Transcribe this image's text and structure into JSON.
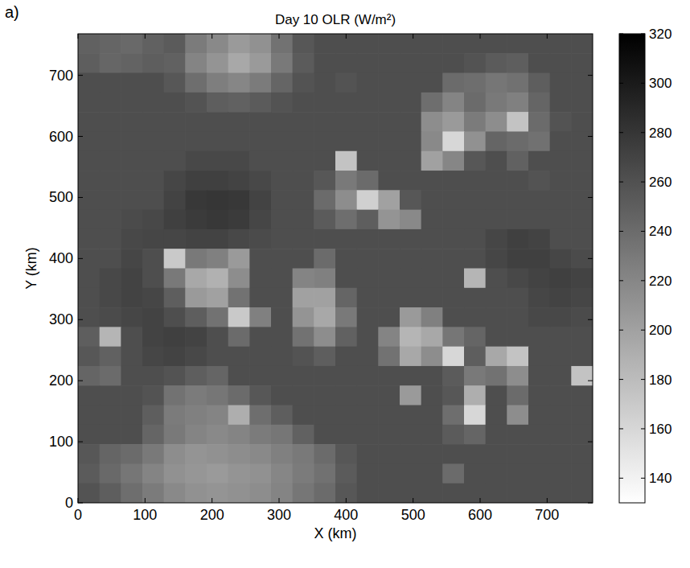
{
  "chart_data": {
    "type": "heatmap",
    "title": "Day 10 OLR (W/m²)",
    "panel_label": "a)",
    "x_label": "X (km)",
    "y_label": "Y (km)",
    "x": [
      16,
      48,
      80,
      112,
      144,
      176,
      208,
      240,
      272,
      304,
      336,
      368,
      400,
      432,
      464,
      496,
      528,
      560,
      592,
      624,
      656,
      688,
      720,
      752
    ],
    "y": [
      752,
      720,
      688,
      656,
      624,
      592,
      560,
      528,
      496,
      464,
      432,
      400,
      368,
      336,
      304,
      272,
      240,
      208,
      176,
      144,
      112,
      80,
      48,
      16
    ],
    "cells": [
      [
        248,
        245,
        242,
        248,
        252,
        228,
        218,
        205,
        212,
        235,
        255,
        262,
        262,
        262,
        262,
        262,
        262,
        262,
        262,
        262,
        262,
        262,
        262,
        262
      ],
      [
        250,
        244,
        246,
        250,
        248,
        222,
        210,
        195,
        205,
        230,
        252,
        262,
        262,
        262,
        262,
        262,
        262,
        262,
        258,
        252,
        250,
        262,
        262,
        262
      ],
      [
        262,
        262,
        262,
        262,
        255,
        238,
        226,
        220,
        228,
        245,
        258,
        262,
        258,
        262,
        262,
        262,
        262,
        240,
        238,
        232,
        236,
        250,
        262,
        262
      ],
      [
        262,
        262,
        262,
        262,
        262,
        258,
        250,
        248,
        252,
        258,
        262,
        262,
        262,
        262,
        262,
        262,
        238,
        222,
        240,
        230,
        225,
        245,
        262,
        262
      ],
      [
        262,
        262,
        262,
        262,
        262,
        262,
        262,
        262,
        262,
        262,
        262,
        262,
        262,
        262,
        262,
        262,
        215,
        205,
        228,
        215,
        175,
        240,
        258,
        262
      ],
      [
        262,
        262,
        262,
        262,
        262,
        262,
        262,
        262,
        262,
        262,
        262,
        262,
        262,
        262,
        262,
        262,
        218,
        160,
        212,
        245,
        240,
        236,
        262,
        262
      ],
      [
        262,
        262,
        262,
        262,
        262,
        266,
        266,
        266,
        262,
        262,
        262,
        262,
        175,
        262,
        262,
        262,
        200,
        220,
        255,
        262,
        248,
        262,
        262,
        262
      ],
      [
        262,
        262,
        262,
        262,
        268,
        272,
        272,
        270,
        266,
        262,
        262,
        255,
        230,
        240,
        262,
        262,
        262,
        262,
        262,
        262,
        262,
        258,
        262,
        262
      ],
      [
        262,
        262,
        262,
        262,
        270,
        278,
        280,
        278,
        270,
        262,
        262,
        240,
        215,
        165,
        200,
        255,
        262,
        262,
        262,
        262,
        262,
        262,
        262,
        262
      ],
      [
        262,
        262,
        264,
        266,
        272,
        276,
        278,
        276,
        268,
        262,
        262,
        252,
        238,
        250,
        210,
        218,
        262,
        262,
        262,
        262,
        262,
        262,
        262,
        262
      ],
      [
        262,
        262,
        266,
        268,
        268,
        270,
        270,
        266,
        264,
        262,
        262,
        262,
        262,
        262,
        262,
        262,
        262,
        262,
        262,
        268,
        272,
        270,
        262,
        262
      ],
      [
        262,
        262,
        268,
        262,
        170,
        230,
        225,
        205,
        262,
        262,
        262,
        240,
        262,
        262,
        262,
        262,
        262,
        262,
        262,
        268,
        272,
        272,
        268,
        264
      ],
      [
        262,
        266,
        270,
        262,
        230,
        195,
        188,
        215,
        262,
        262,
        222,
        225,
        262,
        262,
        262,
        262,
        262,
        262,
        185,
        262,
        266,
        270,
        272,
        270
      ],
      [
        262,
        266,
        270,
        268,
        250,
        205,
        200,
        235,
        262,
        262,
        200,
        200,
        245,
        262,
        262,
        262,
        262,
        262,
        262,
        262,
        262,
        268,
        270,
        268
      ],
      [
        262,
        264,
        268,
        270,
        262,
        250,
        235,
        170,
        225,
        262,
        210,
        195,
        230,
        262,
        262,
        205,
        225,
        262,
        262,
        262,
        262,
        266,
        266,
        264
      ],
      [
        250,
        185,
        262,
        270,
        272,
        270,
        262,
        240,
        262,
        262,
        235,
        215,
        248,
        262,
        222,
        185,
        195,
        232,
        245,
        262,
        262,
        262,
        262,
        262
      ],
      [
        255,
        248,
        262,
        268,
        270,
        266,
        262,
        262,
        262,
        262,
        258,
        250,
        262,
        262,
        235,
        195,
        215,
        160,
        250,
        195,
        175,
        262,
        262,
        262
      ],
      [
        245,
        240,
        262,
        262,
        258,
        250,
        245,
        262,
        262,
        262,
        262,
        262,
        262,
        262,
        262,
        262,
        262,
        252,
        230,
        235,
        215,
        262,
        262,
        175
      ],
      [
        262,
        262,
        262,
        258,
        235,
        228,
        232,
        240,
        255,
        262,
        262,
        262,
        262,
        262,
        262,
        205,
        262,
        255,
        190,
        262,
        240,
        262,
        262,
        262
      ],
      [
        262,
        262,
        262,
        250,
        228,
        225,
        222,
        190,
        238,
        250,
        262,
        262,
        262,
        262,
        262,
        262,
        262,
        238,
        160,
        262,
        215,
        262,
        262,
        262
      ],
      [
        262,
        262,
        262,
        245,
        230,
        222,
        218,
        222,
        228,
        232,
        248,
        262,
        262,
        262,
        262,
        262,
        262,
        252,
        245,
        262,
        262,
        262,
        262,
        262
      ],
      [
        255,
        245,
        240,
        230,
        215,
        210,
        212,
        215,
        218,
        225,
        230,
        240,
        255,
        262,
        262,
        262,
        262,
        262,
        262,
        262,
        262,
        262,
        262,
        262
      ],
      [
        252,
        242,
        232,
        222,
        212,
        208,
        205,
        210,
        212,
        220,
        228,
        236,
        252,
        262,
        262,
        262,
        262,
        240,
        262,
        262,
        262,
        262,
        262,
        262
      ],
      [
        258,
        250,
        238,
        228,
        218,
        212,
        210,
        212,
        215,
        222,
        232,
        240,
        255,
        262,
        262,
        262,
        262,
        262,
        262,
        262,
        262,
        262,
        262,
        262
      ]
    ],
    "xlim": [
      0,
      768
    ],
    "ylim": [
      0,
      768
    ],
    "xticks": [
      0,
      100,
      200,
      300,
      400,
      500,
      600,
      700
    ],
    "yticks": [
      0,
      100,
      200,
      300,
      400,
      500,
      600,
      700
    ],
    "colorbar_range": [
      130,
      320
    ],
    "colorbar_ticks": [
      140,
      160,
      180,
      200,
      220,
      240,
      260,
      280,
      300,
      320
    ]
  }
}
